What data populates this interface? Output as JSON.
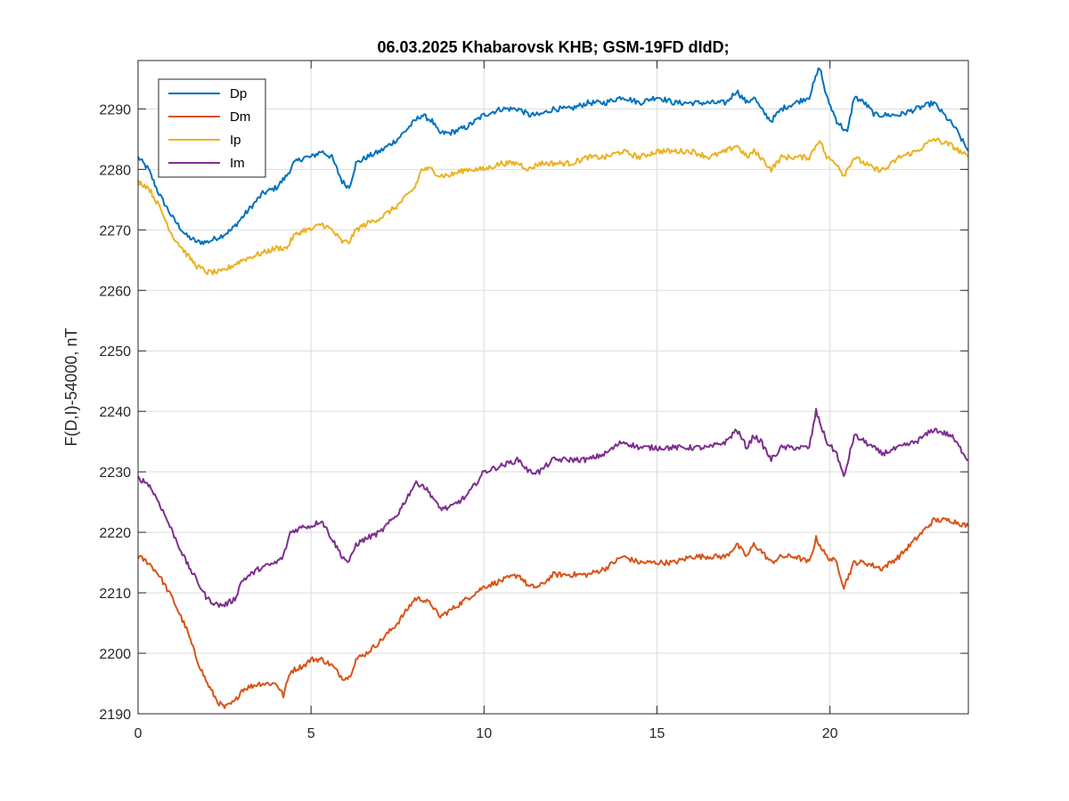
{
  "chart_data": {
    "type": "line",
    "title": "06.03.2025  Khabarovsk KHB; GSM-19FD dIdD;",
    "xlabel": "",
    "ylabel": "F(D,I)-54000, nT",
    "xlim": [
      0,
      24
    ],
    "ylim": [
      2190,
      2298
    ],
    "xticks": [
      0,
      5,
      10,
      15,
      20
    ],
    "yticks": [
      2190,
      2200,
      2210,
      2220,
      2230,
      2240,
      2250,
      2260,
      2270,
      2280,
      2290
    ],
    "grid": true,
    "legend_position": "top-left",
    "series": [
      {
        "name": "Dp",
        "color": "#0072BD",
        "x": [
          0,
          0.3,
          0.6,
          1.0,
          1.4,
          1.7,
          2.0,
          2.4,
          2.7,
          3.0,
          3.3,
          3.6,
          4.0,
          4.3,
          4.5,
          4.8,
          5.0,
          5.3,
          5.6,
          5.9,
          6.1,
          6.3,
          6.6,
          7.0,
          7.5,
          8.0,
          8.2,
          8.5,
          8.7,
          9.0,
          9.5,
          10.0,
          10.5,
          11.0,
          11.3,
          11.6,
          12.0,
          12.5,
          13.0,
          13.5,
          14.0,
          14.5,
          15.0,
          15.5,
          16.0,
          16.5,
          17.0,
          17.3,
          17.6,
          17.8,
          18.0,
          18.3,
          18.6,
          19.0,
          19.4,
          19.7,
          19.9,
          20.2,
          20.5,
          20.7,
          21.0,
          21.3,
          21.6,
          22.0,
          22.5,
          23.0,
          23.3,
          23.6,
          24.0
        ],
        "y": [
          2282,
          2280,
          2276,
          2272,
          2269,
          2268,
          2268,
          2269,
          2270,
          2272,
          2274,
          2276,
          2277,
          2279,
          2281,
          2282,
          2282,
          2283,
          2282,
          2278,
          2277,
          2281,
          2282,
          2283,
          2285,
          2288,
          2289,
          2288,
          2286,
          2286,
          2287,
          2289,
          2290,
          2290,
          2289,
          2289,
          2290,
          2290,
          2291,
          2291,
          2292,
          2291,
          2292,
          2291,
          2291,
          2291,
          2291,
          2293,
          2291,
          2292,
          2290,
          2288,
          2290,
          2291,
          2292,
          2297,
          2292,
          2288,
          2286,
          2292,
          2291,
          2289,
          2289,
          2289,
          2290,
          2291,
          2289,
          2287,
          2283
        ]
      },
      {
        "name": "Dm",
        "color": "#D95319",
        "x": [
          0,
          0.3,
          0.6,
          1.0,
          1.4,
          1.7,
          2.0,
          2.3,
          2.5,
          2.8,
          3.0,
          3.5,
          4.0,
          4.2,
          4.4,
          4.8,
          5.0,
          5.3,
          5.6,
          5.9,
          6.1,
          6.3,
          6.6,
          7.0,
          7.5,
          8.0,
          8.2,
          8.5,
          8.7,
          9.0,
          9.5,
          10.0,
          10.5,
          11.0,
          11.3,
          11.6,
          12.0,
          12.5,
          13.0,
          13.5,
          14.0,
          14.5,
          15.0,
          15.5,
          16.0,
          16.5,
          17.0,
          17.3,
          17.6,
          17.8,
          18.0,
          18.3,
          18.6,
          19.0,
          19.4,
          19.6,
          19.9,
          20.2,
          20.4,
          20.7,
          21.0,
          21.5,
          22.0,
          22.5,
          23.0,
          23.5,
          24.0
        ],
        "y": [
          2216,
          2215,
          2213,
          2209,
          2204,
          2199,
          2195,
          2192,
          2191,
          2192,
          2194,
          2195,
          2195,
          2193,
          2197,
          2198,
          2199,
          2199,
          2198,
          2196,
          2196,
          2199,
          2200,
          2202,
          2205,
          2209,
          2209,
          2208,
          2206,
          2207,
          2209,
          2211,
          2212,
          2213,
          2211,
          2211,
          2213,
          2213,
          2213,
          2214,
          2216,
          2215,
          2215,
          2215,
          2216,
          2216,
          2216,
          2218,
          2216,
          2218,
          2217,
          2215,
          2216,
          2216,
          2215,
          2219,
          2216,
          2215,
          2211,
          2215,
          2215,
          2214,
          2216,
          2219,
          2222,
          2222,
          2221
        ]
      },
      {
        "name": "Ip",
        "color": "#EDB120",
        "x": [
          0,
          0.3,
          0.6,
          1.0,
          1.4,
          1.7,
          2.0,
          2.4,
          2.7,
          3.0,
          3.5,
          4.0,
          4.3,
          4.5,
          4.8,
          5.0,
          5.3,
          5.6,
          5.9,
          6.1,
          6.3,
          6.6,
          7.0,
          7.5,
          8.0,
          8.2,
          8.5,
          8.7,
          9.0,
          9.5,
          10.0,
          10.5,
          11.0,
          11.3,
          11.6,
          12.0,
          12.5,
          13.0,
          13.5,
          14.0,
          14.5,
          15.0,
          15.5,
          16.0,
          16.5,
          17.0,
          17.3,
          17.6,
          17.8,
          18.0,
          18.3,
          18.6,
          19.0,
          19.4,
          19.7,
          19.9,
          20.2,
          20.4,
          20.7,
          21.0,
          21.3,
          21.6,
          22.0,
          22.5,
          23.0,
          23.5,
          24.0
        ],
        "y": [
          2278,
          2277,
          2274,
          2269,
          2266,
          2264,
          2263,
          2263,
          2264,
          2265,
          2266,
          2267,
          2267,
          2269,
          2270,
          2270,
          2271,
          2270,
          2268,
          2268,
          2270,
          2271,
          2272,
          2274,
          2277,
          2280,
          2280,
          2279,
          2279,
          2280,
          2280,
          2281,
          2281,
          2280,
          2281,
          2281,
          2281,
          2282,
          2282,
          2283,
          2282,
          2283,
          2283,
          2283,
          2282,
          2283,
          2284,
          2282,
          2283,
          2282,
          2280,
          2282,
          2282,
          2282,
          2285,
          2282,
          2281,
          2279,
          2282,
          2281,
          2280,
          2280,
          2282,
          2283,
          2285,
          2284,
          2282
        ]
      },
      {
        "name": "Im",
        "color": "#7E2F8E",
        "x": [
          0,
          0.3,
          0.6,
          1.0,
          1.4,
          1.7,
          2.0,
          2.3,
          2.5,
          2.8,
          3.0,
          3.5,
          4.0,
          4.2,
          4.4,
          4.8,
          5.0,
          5.3,
          5.6,
          5.9,
          6.1,
          6.3,
          6.6,
          7.0,
          7.5,
          8.0,
          8.2,
          8.5,
          8.7,
          9.0,
          9.5,
          10.0,
          10.5,
          11.0,
          11.3,
          11.6,
          12.0,
          12.5,
          13.0,
          13.5,
          14.0,
          14.5,
          15.0,
          15.5,
          16.0,
          16.5,
          17.0,
          17.3,
          17.6,
          17.8,
          18.0,
          18.3,
          18.6,
          19.0,
          19.4,
          19.6,
          19.9,
          20.2,
          20.4,
          20.7,
          21.0,
          21.5,
          22.0,
          22.5,
          23.0,
          23.5,
          24.0
        ],
        "y": [
          2229,
          2228,
          2225,
          2220,
          2215,
          2212,
          2209,
          2208,
          2208,
          2209,
          2212,
          2214,
          2215,
          2216,
          2220,
          2221,
          2221,
          2222,
          2219,
          2216,
          2215,
          2218,
          2219,
          2220,
          2223,
          2228,
          2228,
          2226,
          2224,
          2224,
          2226,
          2230,
          2231,
          2232,
          2230,
          2230,
          2232,
          2232,
          2232,
          2233,
          2235,
          2234,
          2234,
          2234,
          2234,
          2234,
          2235,
          2237,
          2234,
          2236,
          2235,
          2232,
          2234,
          2234,
          2234,
          2240,
          2235,
          2233,
          2229,
          2236,
          2235,
          2233,
          2234,
          2235,
          2237,
          2236,
          2232
        ]
      }
    ]
  }
}
